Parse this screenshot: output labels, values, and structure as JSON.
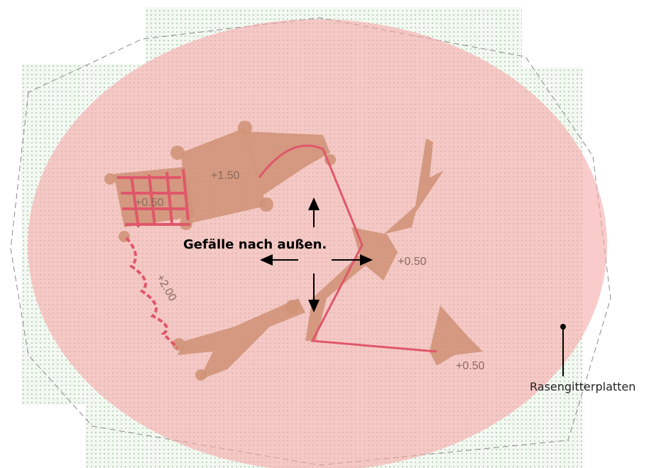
{
  "elevations": [
    "+1.50",
    "+0.50",
    "+2.00",
    "+0.50",
    "+0.50"
  ],
  "annotation": "Gefälle nach außen.",
  "callout": "Rasengitterplatten"
}
